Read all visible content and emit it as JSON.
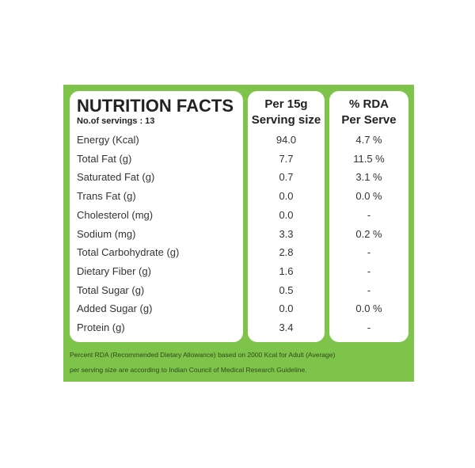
{
  "label": {
    "title": "NUTRITION FACTS",
    "servings": "No.of servings : 13",
    "columns": [
      {
        "line1": "Per 15g",
        "line2": "Serving size"
      },
      {
        "line1": "% RDA",
        "line2": "Per Serve"
      }
    ],
    "rows": [
      [
        "Energy (Kcal)",
        "94.0",
        "4.7 %"
      ],
      [
        "Total Fat (g)",
        "7.7",
        "11.5 %"
      ],
      [
        "Saturated Fat (g)",
        "0.7",
        "3.1 %"
      ],
      [
        "Trans Fat (g)",
        "0.0",
        "0.0 %"
      ],
      [
        "Cholesterol (mg)",
        "0.0",
        "-"
      ],
      [
        "Sodium (mg)",
        "3.3",
        "0.2 %"
      ],
      [
        "Total Carbohydrate (g)",
        "2.8",
        "-"
      ],
      [
        "Dietary Fiber (g)",
        "1.6",
        "-"
      ],
      [
        "Total Sugar (g)",
        "0.5",
        "-"
      ],
      [
        "Added Sugar (g)",
        "0.0",
        "0.0 %"
      ],
      [
        "Protein (g)",
        "3.4",
        "-"
      ]
    ],
    "footer": [
      "Percent RDA (Recommended Dietary Allowance) based on 2000 Kcal for Adult (Average)",
      "per serving size are according to Indian Council of Medical Research Guideline."
    ]
  }
}
